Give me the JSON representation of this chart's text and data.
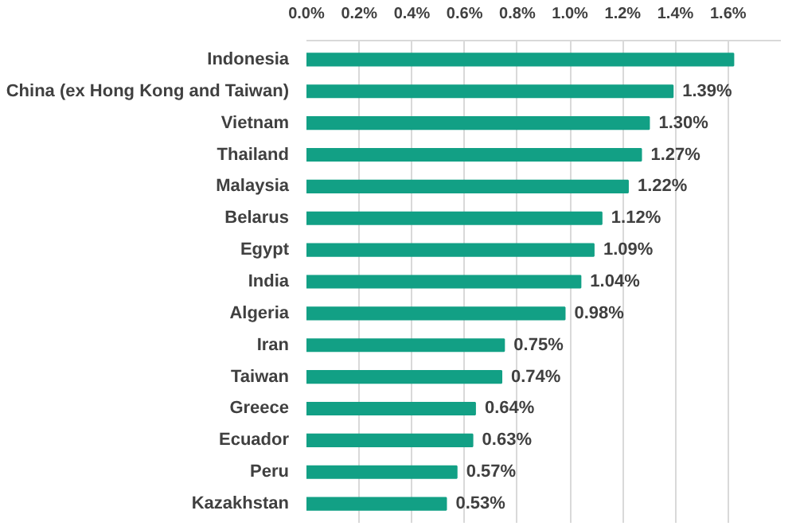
{
  "chart_data": {
    "type": "bar",
    "orientation": "horizontal",
    "categories": [
      "Indonesia",
      "China (ex Hong Kong and Taiwan)",
      "Vietnam",
      "Thailand",
      "Malaysia",
      "Belarus",
      "Egypt",
      "India",
      "Algeria",
      "Iran",
      "Taiwan",
      "Greece",
      "Ecuador",
      "Peru",
      "Kazakhstan"
    ],
    "values": [
      1.62,
      1.39,
      1.3,
      1.27,
      1.22,
      1.12,
      1.09,
      1.04,
      0.98,
      0.75,
      0.74,
      0.64,
      0.63,
      0.57,
      0.53
    ],
    "value_labels": [
      null,
      "1.39%",
      "1.30%",
      "1.27%",
      "1.22%",
      "1.12%",
      "1.09%",
      "1.04%",
      "0.98%",
      "0.75%",
      "0.74%",
      "0.64%",
      "0.63%",
      "0.57%",
      "0.53%"
    ],
    "color": "#12a085",
    "xlim": [
      0,
      1.8
    ],
    "xticks": [
      {
        "value": 0,
        "label": "0.0%"
      },
      {
        "value": 0.2,
        "label": "0.2%"
      },
      {
        "value": 0.4,
        "label": "0.4%"
      },
      {
        "value": 0.6,
        "label": "0.6%"
      },
      {
        "value": 0.8,
        "label": "0.8%"
      },
      {
        "value": 1.0,
        "label": "1.0%"
      },
      {
        "value": 1.2,
        "label": "1.2%"
      },
      {
        "value": 1.4,
        "label": "1.4%"
      },
      {
        "value": 1.6,
        "label": "1.6%"
      }
    ],
    "grid": "x"
  }
}
